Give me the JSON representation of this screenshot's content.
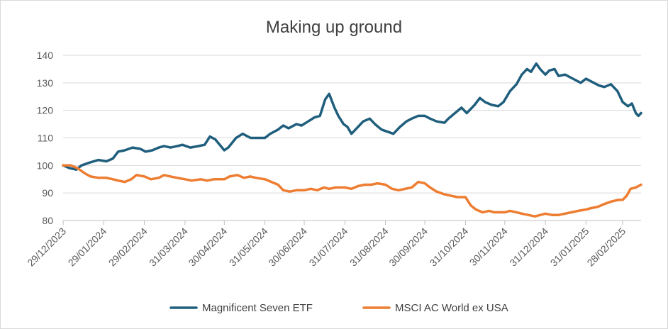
{
  "chart_data": {
    "type": "line",
    "title": "Making up ground",
    "xlabel": "",
    "ylabel": "",
    "ylim": [
      80,
      140
    ],
    "yticks": [
      "80",
      "90",
      "100",
      "110",
      "120",
      "130",
      "140"
    ],
    "x_start": "2023-12-29",
    "x_end": "2025-03-14",
    "xtick_labels": [
      {
        "date": "2023-12-29",
        "label": "29/12/2023"
      },
      {
        "date": "2024-01-29",
        "label": "29/01/2024"
      },
      {
        "date": "2024-02-29",
        "label": "29/02/2024"
      },
      {
        "date": "2024-03-31",
        "label": "31/03/2024"
      },
      {
        "date": "2024-04-30",
        "label": "30/04/2024"
      },
      {
        "date": "2024-05-31",
        "label": "31/05/2024"
      },
      {
        "date": "2024-06-30",
        "label": "30/06/2024"
      },
      {
        "date": "2024-07-31",
        "label": "31/07/2024"
      },
      {
        "date": "2024-08-31",
        "label": "31/08/2024"
      },
      {
        "date": "2024-09-30",
        "label": "30/09/2024"
      },
      {
        "date": "2024-10-31",
        "label": "31/10/2024"
      },
      {
        "date": "2024-11-30",
        "label": "30/11/2024"
      },
      {
        "date": "2024-12-31",
        "label": "31/12/2024"
      },
      {
        "date": "2025-01-31",
        "label": "31/01/2025"
      },
      {
        "date": "2025-02-28",
        "label": "28/02/2025"
      }
    ],
    "grid": true,
    "legend_position": "bottom-center",
    "series": [
      {
        "name": "Magnificent Seven ETF",
        "color": "#1f5e7c",
        "points": [
          [
            "2023-12-29",
            100
          ],
          [
            "2024-01-03",
            99
          ],
          [
            "2024-01-08",
            98.5
          ],
          [
            "2024-01-12",
            100
          ],
          [
            "2024-01-18",
            101
          ],
          [
            "2024-01-25",
            102
          ],
          [
            "2024-01-31",
            101.5
          ],
          [
            "2024-02-05",
            102.5
          ],
          [
            "2024-02-09",
            105
          ],
          [
            "2024-02-14",
            105.5
          ],
          [
            "2024-02-20",
            106.5
          ],
          [
            "2024-02-26",
            106
          ],
          [
            "2024-03-01",
            105
          ],
          [
            "2024-03-06",
            105.5
          ],
          [
            "2024-03-11",
            106.5
          ],
          [
            "2024-03-15",
            107
          ],
          [
            "2024-03-20",
            106.5
          ],
          [
            "2024-03-25",
            107
          ],
          [
            "2024-03-29",
            107.5
          ],
          [
            "2024-04-04",
            106.5
          ],
          [
            "2024-04-10",
            107
          ],
          [
            "2024-04-15",
            107.5
          ],
          [
            "2024-04-19",
            110.5
          ],
          [
            "2024-04-23",
            109.5
          ],
          [
            "2024-04-30",
            105.5
          ],
          [
            "2024-05-03",
            106.5
          ],
          [
            "2024-05-09",
            110
          ],
          [
            "2024-05-14",
            111.5
          ],
          [
            "2024-05-20",
            110
          ],
          [
            "2024-05-24",
            110
          ],
          [
            "2024-05-31",
            110
          ],
          [
            "2024-06-04",
            111.5
          ],
          [
            "2024-06-10",
            113
          ],
          [
            "2024-06-14",
            114.5
          ],
          [
            "2024-06-18",
            113.5
          ],
          [
            "2024-06-24",
            115
          ],
          [
            "2024-06-28",
            114.5
          ],
          [
            "2024-07-03",
            116
          ],
          [
            "2024-07-08",
            117.5
          ],
          [
            "2024-07-12",
            118
          ],
          [
            "2024-07-16",
            124
          ],
          [
            "2024-07-19",
            126
          ],
          [
            "2024-07-23",
            121
          ],
          [
            "2024-07-26",
            118
          ],
          [
            "2024-07-30",
            115
          ],
          [
            "2024-08-02",
            114
          ],
          [
            "2024-08-05",
            111.5
          ],
          [
            "2024-08-09",
            113.5
          ],
          [
            "2024-08-14",
            116
          ],
          [
            "2024-08-19",
            117
          ],
          [
            "2024-08-23",
            115
          ],
          [
            "2024-08-28",
            113
          ],
          [
            "2024-09-03",
            112
          ],
          [
            "2024-09-06",
            111.5
          ],
          [
            "2024-09-11",
            114
          ],
          [
            "2024-09-16",
            116
          ],
          [
            "2024-09-20",
            117
          ],
          [
            "2024-09-25",
            118
          ],
          [
            "2024-09-30",
            118
          ],
          [
            "2024-10-04",
            117
          ],
          [
            "2024-10-09",
            116
          ],
          [
            "2024-10-15",
            115.5
          ],
          [
            "2024-10-18",
            117
          ],
          [
            "2024-10-23",
            119
          ],
          [
            "2024-10-28",
            121
          ],
          [
            "2024-11-01",
            119
          ],
          [
            "2024-11-07",
            122
          ],
          [
            "2024-11-11",
            124.5
          ],
          [
            "2024-11-15",
            123
          ],
          [
            "2024-11-20",
            122
          ],
          [
            "2024-11-25",
            121.5
          ],
          [
            "2024-11-29",
            123
          ],
          [
            "2024-12-04",
            127
          ],
          [
            "2024-12-09",
            129.5
          ],
          [
            "2024-12-13",
            133
          ],
          [
            "2024-12-17",
            135
          ],
          [
            "2024-12-20",
            134
          ],
          [
            "2024-12-24",
            137
          ],
          [
            "2024-12-27",
            135
          ],
          [
            "2024-12-31",
            133
          ],
          [
            "2025-01-03",
            134.5
          ],
          [
            "2025-01-07",
            135
          ],
          [
            "2025-01-10",
            132.5
          ],
          [
            "2025-01-15",
            133
          ],
          [
            "2025-01-21",
            131.5
          ],
          [
            "2025-01-27",
            130
          ],
          [
            "2025-01-31",
            131.5
          ],
          [
            "2025-02-04",
            130.5
          ],
          [
            "2025-02-10",
            129
          ],
          [
            "2025-02-14",
            128.5
          ],
          [
            "2025-02-19",
            129.5
          ],
          [
            "2025-02-24",
            127
          ],
          [
            "2025-02-28",
            123
          ],
          [
            "2025-03-04",
            121.5
          ],
          [
            "2025-03-07",
            122.5
          ],
          [
            "2025-03-10",
            119
          ],
          [
            "2025-03-12",
            118
          ],
          [
            "2025-03-14",
            119
          ]
        ]
      },
      {
        "name": "MSCI AC World ex USA",
        "color": "#ed7d31",
        "points": [
          [
            "2023-12-29",
            100
          ],
          [
            "2024-01-04",
            100
          ],
          [
            "2024-01-09",
            99
          ],
          [
            "2024-01-15",
            97
          ],
          [
            "2024-01-19",
            96
          ],
          [
            "2024-01-25",
            95.5
          ],
          [
            "2024-01-31",
            95.5
          ],
          [
            "2024-02-05",
            95
          ],
          [
            "2024-02-09",
            94.5
          ],
          [
            "2024-02-14",
            94
          ],
          [
            "2024-02-19",
            95
          ],
          [
            "2024-02-23",
            96.5
          ],
          [
            "2024-02-29",
            96
          ],
          [
            "2024-03-05",
            95
          ],
          [
            "2024-03-11",
            95.5
          ],
          [
            "2024-03-15",
            96.5
          ],
          [
            "2024-03-20",
            96
          ],
          [
            "2024-03-25",
            95.5
          ],
          [
            "2024-03-31",
            95
          ],
          [
            "2024-04-05",
            94.5
          ],
          [
            "2024-04-12",
            95
          ],
          [
            "2024-04-17",
            94.5
          ],
          [
            "2024-04-22",
            95
          ],
          [
            "2024-04-30",
            95
          ],
          [
            "2024-05-04",
            96
          ],
          [
            "2024-05-10",
            96.5
          ],
          [
            "2024-05-15",
            95.5
          ],
          [
            "2024-05-20",
            96
          ],
          [
            "2024-05-24",
            95.5
          ],
          [
            "2024-05-31",
            95
          ],
          [
            "2024-06-05",
            94
          ],
          [
            "2024-06-10",
            93
          ],
          [
            "2024-06-14",
            91
          ],
          [
            "2024-06-19",
            90.5
          ],
          [
            "2024-06-24",
            91
          ],
          [
            "2024-06-30",
            91
          ],
          [
            "2024-07-05",
            91.5
          ],
          [
            "2024-07-10",
            91
          ],
          [
            "2024-07-15",
            92
          ],
          [
            "2024-07-19",
            91.5
          ],
          [
            "2024-07-24",
            92
          ],
          [
            "2024-07-31",
            92
          ],
          [
            "2024-08-05",
            91.5
          ],
          [
            "2024-08-10",
            92.5
          ],
          [
            "2024-08-15",
            93
          ],
          [
            "2024-08-20",
            93
          ],
          [
            "2024-08-25",
            93.5
          ],
          [
            "2024-08-31",
            93
          ],
          [
            "2024-09-05",
            91.5
          ],
          [
            "2024-09-10",
            91
          ],
          [
            "2024-09-15",
            91.5
          ],
          [
            "2024-09-20",
            92
          ],
          [
            "2024-09-25",
            94
          ],
          [
            "2024-09-30",
            93.5
          ],
          [
            "2024-10-04",
            92
          ],
          [
            "2024-10-09",
            90.5
          ],
          [
            "2024-10-15",
            89.5
          ],
          [
            "2024-10-20",
            89
          ],
          [
            "2024-10-25",
            88.5
          ],
          [
            "2024-10-31",
            88.5
          ],
          [
            "2024-11-04",
            85.5
          ],
          [
            "2024-11-08",
            84
          ],
          [
            "2024-11-13",
            83
          ],
          [
            "2024-11-18",
            83.5
          ],
          [
            "2024-11-22",
            83
          ],
          [
            "2024-11-30",
            83
          ],
          [
            "2024-12-04",
            83.5
          ],
          [
            "2024-12-09",
            83
          ],
          [
            "2024-12-13",
            82.5
          ],
          [
            "2024-12-18",
            82
          ],
          [
            "2024-12-23",
            81.5
          ],
          [
            "2024-12-31",
            82.5
          ],
          [
            "2025-01-05",
            82
          ],
          [
            "2025-01-10",
            82
          ],
          [
            "2025-01-15",
            82.5
          ],
          [
            "2025-01-20",
            83
          ],
          [
            "2025-01-25",
            83.5
          ],
          [
            "2025-01-31",
            84
          ],
          [
            "2025-02-04",
            84.5
          ],
          [
            "2025-02-09",
            85
          ],
          [
            "2025-02-14",
            86
          ],
          [
            "2025-02-20",
            87
          ],
          [
            "2025-02-25",
            87.5
          ],
          [
            "2025-02-28",
            87.5
          ],
          [
            "2025-03-03",
            89
          ],
          [
            "2025-03-06",
            91.5
          ],
          [
            "2025-03-10",
            92
          ],
          [
            "2025-03-14",
            93
          ]
        ]
      }
    ]
  }
}
